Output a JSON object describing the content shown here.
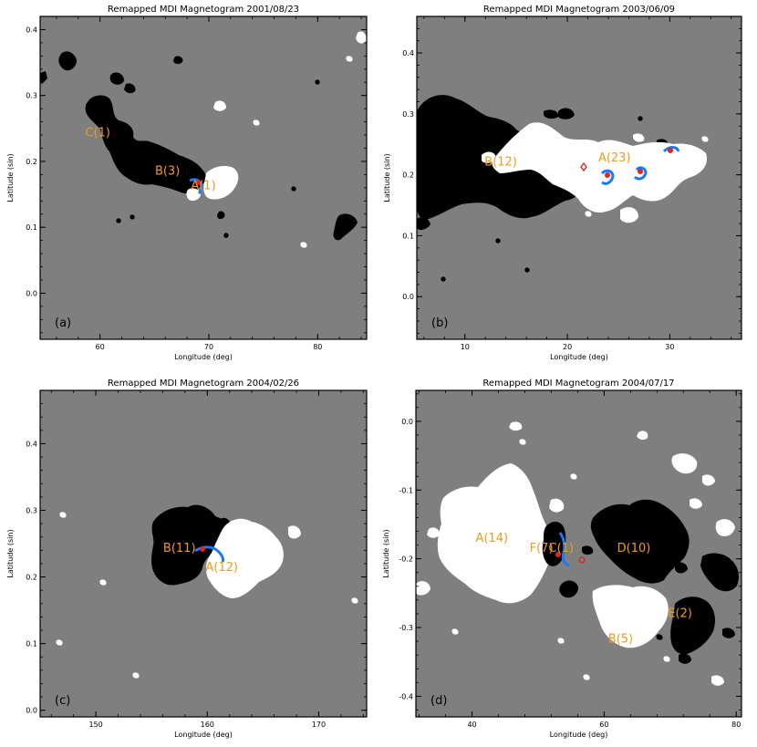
{
  "colors": {
    "background": "#7f7f7f",
    "positive": "#ffffff",
    "negative": "#000000",
    "contour_blue": "#1a78ff",
    "marker_red": "#e0241f",
    "label_orange": "#f29a1c"
  },
  "panels": [
    {
      "title": "Remapped MDI Magnetogram 2001/08/23",
      "xlabel": "Longitude (deg)",
      "ylabel": "Latitude (sin)",
      "panel_label": "(a)",
      "xlim": [
        54.5,
        84.5
      ],
      "ylim": [
        -0.07,
        0.42
      ],
      "x_ticks": [
        60,
        70,
        80
      ],
      "y_ticks": [
        0.0,
        0.1,
        0.2,
        0.3,
        0.4
      ],
      "y_tick_labels": [
        "0.0",
        "0.1",
        "0.2",
        "0.3",
        "0.4"
      ],
      "regions": [
        {
          "text": "C(1)",
          "x": 59.8,
          "y": 0.238
        },
        {
          "text": "B(3)",
          "x": 66.2,
          "y": 0.18
        },
        {
          "text": "A(1)",
          "x": 69.5,
          "y": 0.158
        }
      ]
    },
    {
      "title": "Remapped MDI Magnetogram 2003/06/09",
      "xlabel": "Longitude (deg)",
      "ylabel": "Latitude (sin)",
      "panel_label": "(b)",
      "xlim": [
        5.3,
        37.0
      ],
      "ylim": [
        -0.07,
        0.46
      ],
      "x_ticks": [
        10,
        20,
        30
      ],
      "y_ticks": [
        0.0,
        0.1,
        0.2,
        0.3,
        0.4
      ],
      "y_tick_labels": [
        "0.0",
        "0.1",
        "0.2",
        "0.3",
        "0.4"
      ],
      "regions": [
        {
          "text": "B(12)",
          "x": 13.5,
          "y": 0.215
        },
        {
          "text": "A(23)",
          "x": 24.6,
          "y": 0.222
        }
      ]
    },
    {
      "title": "Remapped MDI Magnetogram 2004/02/26",
      "xlabel": "Longitude (deg)",
      "ylabel": "Latitude (sin)",
      "panel_label": "(c)",
      "xlim": [
        145.0,
        174.3
      ],
      "ylim": [
        -0.01,
        0.48
      ],
      "x_ticks": [
        150,
        160,
        170
      ],
      "y_ticks": [
        0.0,
        0.1,
        0.2,
        0.3,
        0.4
      ],
      "y_tick_labels": [
        "0.0",
        "0.1",
        "0.2",
        "0.3",
        "0.4"
      ],
      "regions": [
        {
          "text": "B(11)",
          "x": 157.5,
          "y": 0.238
        },
        {
          "text": "A(12)",
          "x": 161.3,
          "y": 0.209
        }
      ]
    },
    {
      "title": "Remapped MDI Magnetogram 2004/07/17",
      "xlabel": "Longitude (deg)",
      "ylabel": "Latitude (sin)",
      "panel_label": "(d)",
      "xlim": [
        31.5,
        80.8
      ],
      "ylim": [
        -0.43,
        0.045
      ],
      "x_ticks": [
        40,
        60,
        80
      ],
      "x_tick_labels": [
        "40",
        "60",
        "80"
      ],
      "y_ticks": [
        -0.4,
        -0.3,
        -0.2,
        -0.1,
        0.0
      ],
      "y_tick_labels": [
        "-0.4",
        "-0.3",
        "-0.2",
        "-0.1",
        "0.0"
      ],
      "regions": [
        {
          "text": "A(14)",
          "x": 43.0,
          "y": -0.175
        },
        {
          "text": "F(7)",
          "x": 50.5,
          "y": -0.19
        },
        {
          "text": "C(1)",
          "x": 53.5,
          "y": -0.19
        },
        {
          "text": "D(10)",
          "x": 64.5,
          "y": -0.19
        },
        {
          "text": "B(5)",
          "x": 62.5,
          "y": -0.322
        },
        {
          "text": "E(2)",
          "x": 71.5,
          "y": -0.285
        }
      ]
    }
  ]
}
